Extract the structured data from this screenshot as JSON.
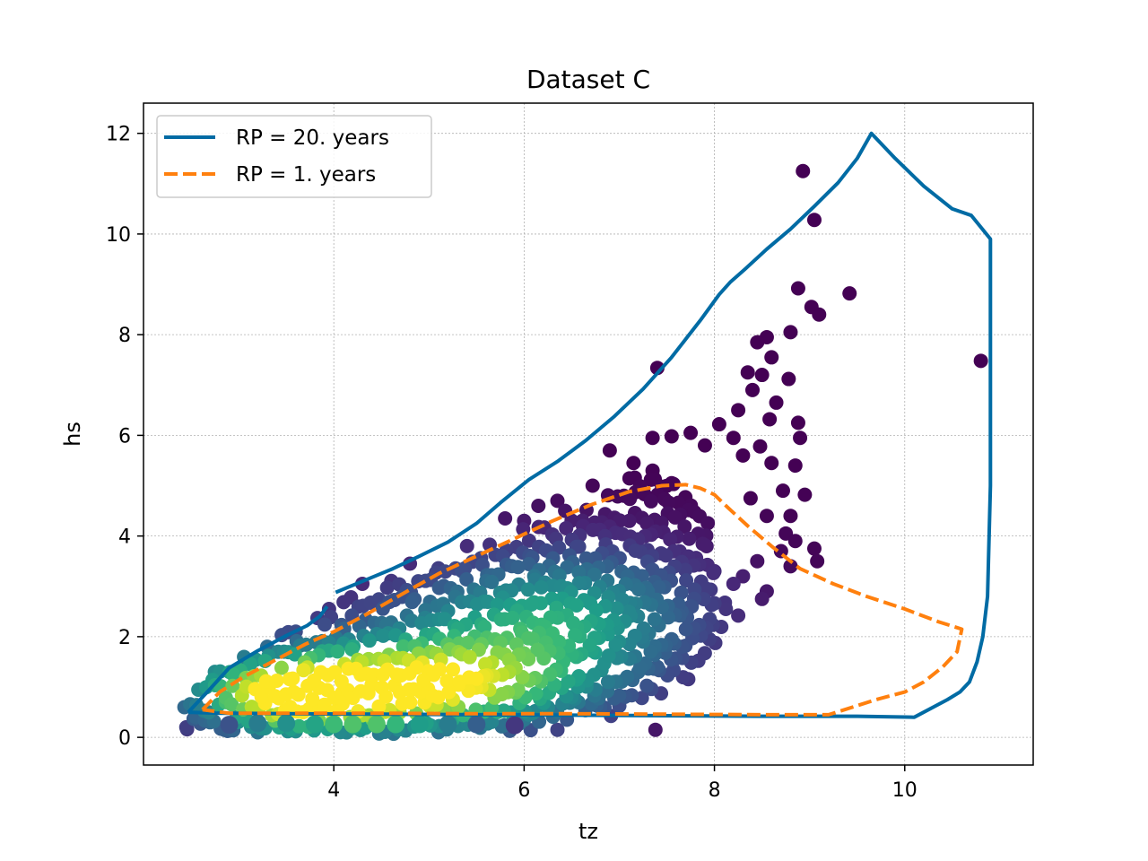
{
  "chart_data": {
    "type": "scatter",
    "title": "Dataset C",
    "xlabel": "tz",
    "ylabel": "hs",
    "xlim": [
      2.0,
      11.35
    ],
    "ylim": [
      -0.55,
      12.6
    ],
    "xticks": [
      4,
      6,
      8,
      10
    ],
    "yticks": [
      0,
      2,
      4,
      6,
      8,
      10,
      12
    ],
    "grid": true,
    "legend_position": "top-left",
    "colormap": "viridis",
    "series": [
      {
        "name": "RP = 20. years",
        "style": "solid",
        "color": "#006ba4",
        "segments": [
          {
            "x": [
              2.47,
              2.68,
              2.9,
              3.2,
              3.5,
              3.72,
              3.85,
              3.93
            ],
            "y": [
              0.5,
              0.92,
              1.38,
              1.72,
              2.02,
              2.22,
              2.4,
              2.6
            ]
          },
          {
            "x": [
              4.02,
              4.3,
              4.62,
              4.9,
              5.2,
              5.5,
              5.75,
              6.05,
              6.35,
              6.65,
              6.95,
              7.25,
              7.55,
              7.85,
              8.05,
              8.17,
              8.32,
              8.55,
              8.8,
              9.05,
              9.3,
              9.5,
              9.65,
              9.9,
              10.2,
              10.5,
              10.7,
              10.9,
              10.9,
              10.87,
              10.82,
              10.76,
              10.68,
              10.58,
              10.45,
              10.1,
              9.5,
              8.5,
              7.5,
              6.5,
              5.5,
              4.5,
              3.5,
              2.8,
              2.47
            ],
            "y": [
              2.88,
              3.1,
              3.35,
              3.6,
              3.88,
              4.25,
              4.66,
              5.12,
              5.48,
              5.9,
              6.38,
              6.92,
              7.55,
              8.28,
              8.8,
              9.05,
              9.3,
              9.7,
              10.1,
              10.55,
              11.02,
              11.5,
              12.0,
              11.5,
              10.95,
              10.5,
              10.37,
              9.9,
              5.0,
              2.8,
              2.0,
              1.5,
              1.1,
              0.9,
              0.75,
              0.4,
              0.42,
              0.42,
              0.43,
              0.44,
              0.45,
              0.46,
              0.47,
              0.48,
              0.5
            ]
          }
        ]
      },
      {
        "name": "RP = 1. years",
        "style": "dashed",
        "color": "#ff800e",
        "segments": [
          {
            "x": [
              2.62,
              2.8,
              3.05,
              3.35,
              3.7,
              4.0,
              4.35,
              4.72,
              5.1,
              5.5,
              5.9,
              6.3,
              6.7,
              7.1,
              7.45,
              7.7,
              7.85,
              8.0,
              8.15,
              8.35,
              8.6,
              8.9,
              9.25,
              9.6,
              10.0,
              10.35,
              10.6,
              10.55,
              10.4,
              10.2,
              10.0,
              9.7,
              9.45,
              9.2,
              8.5,
              7.5,
              6.5,
              5.5,
              4.5,
              3.5,
              2.9,
              2.62
            ],
            "y": [
              0.55,
              0.9,
              1.2,
              1.5,
              1.85,
              2.1,
              2.45,
              2.85,
              3.25,
              3.6,
              3.95,
              4.3,
              4.62,
              4.88,
              5.0,
              5.02,
              4.95,
              4.82,
              4.55,
              4.2,
              3.8,
              3.35,
              3.05,
              2.8,
              2.55,
              2.3,
              2.15,
              1.7,
              1.4,
              1.1,
              0.9,
              0.75,
              0.6,
              0.45,
              0.45,
              0.46,
              0.47,
              0.47,
              0.48,
              0.48,
              0.48,
              0.55
            ]
          }
        ]
      }
    ],
    "density_blobs": [
      {
        "x": 4.4,
        "y": 0.95,
        "sx": 1.3,
        "sy": 0.6,
        "w": 1.0
      },
      {
        "x": 5.8,
        "y": 1.9,
        "sx": 1.25,
        "sy": 0.9,
        "w": 0.45
      },
      {
        "x": 6.6,
        "y": 2.8,
        "sx": 1.0,
        "sy": 0.9,
        "w": 0.3
      },
      {
        "x": 3.5,
        "y": 0.75,
        "sx": 0.55,
        "sy": 0.45,
        "w": 0.45
      }
    ],
    "band_points": [
      {
        "x": 3.2,
        "y": 0.28,
        "v": 0.42
      },
      {
        "x": 3.5,
        "y": 0.28,
        "v": 0.5
      },
      {
        "x": 3.8,
        "y": 0.26,
        "v": 0.58
      },
      {
        "x": 4.0,
        "y": 0.26,
        "v": 0.68
      },
      {
        "x": 4.2,
        "y": 0.26,
        "v": 0.72
      },
      {
        "x": 4.45,
        "y": 0.26,
        "v": 0.72
      },
      {
        "x": 4.65,
        "y": 0.26,
        "v": 0.66
      },
      {
        "x": 4.9,
        "y": 0.26,
        "v": 0.55
      },
      {
        "x": 5.2,
        "y": 0.26,
        "v": 0.42
      },
      {
        "x": 5.5,
        "y": 0.26,
        "v": 0.3
      },
      {
        "x": 5.9,
        "y": 0.24,
        "v": 0.16
      },
      {
        "x": 2.9,
        "y": 0.25,
        "v": 0.25
      }
    ],
    "outliers": [
      [
        8.93,
        11.25
      ],
      [
        9.05,
        10.28
      ],
      [
        10.8,
        7.48
      ],
      [
        8.88,
        8.92
      ],
      [
        9.42,
        8.82
      ],
      [
        9.02,
        8.55
      ],
      [
        9.1,
        8.4
      ],
      [
        7.4,
        7.34
      ],
      [
        8.55,
        7.95
      ],
      [
        8.8,
        8.05
      ],
      [
        8.45,
        7.85
      ],
      [
        8.6,
        7.55
      ],
      [
        8.35,
        7.25
      ],
      [
        8.5,
        7.2
      ],
      [
        8.78,
        7.12
      ],
      [
        8.4,
        6.9
      ],
      [
        8.65,
        6.65
      ],
      [
        8.25,
        6.5
      ],
      [
        8.58,
        6.32
      ],
      [
        8.88,
        6.25
      ],
      [
        8.05,
        6.22
      ],
      [
        7.75,
        6.05
      ],
      [
        7.55,
        5.98
      ],
      [
        7.35,
        5.95
      ],
      [
        7.9,
        5.8
      ],
      [
        8.2,
        5.95
      ],
      [
        8.48,
        5.78
      ],
      [
        8.9,
        5.95
      ],
      [
        8.3,
        5.6
      ],
      [
        8.6,
        5.45
      ],
      [
        8.85,
        5.4
      ],
      [
        8.72,
        4.9
      ],
      [
        8.95,
        4.82
      ],
      [
        8.55,
        4.4
      ],
      [
        8.8,
        4.4
      ],
      [
        8.75,
        4.05
      ],
      [
        8.85,
        3.9
      ],
      [
        8.7,
        3.7
      ],
      [
        9.05,
        3.75
      ],
      [
        9.08,
        3.5
      ],
      [
        8.8,
        3.4
      ],
      [
        8.45,
        3.5
      ],
      [
        8.3,
        3.2
      ],
      [
        8.0,
        3.3
      ],
      [
        8.2,
        3.05
      ],
      [
        8.55,
        2.9
      ],
      [
        8.5,
        2.75
      ],
      [
        8.12,
        2.55
      ],
      [
        8.25,
        2.42
      ],
      [
        7.95,
        2.35
      ],
      [
        7.75,
        2.6
      ],
      [
        7.3,
        2.9
      ],
      [
        7.1,
        2.5
      ],
      [
        6.95,
        2.25
      ],
      [
        7.7,
        2.15
      ],
      [
        7.55,
        1.95
      ],
      [
        7.25,
        1.9
      ],
      [
        7.4,
        1.4
      ],
      [
        7.2,
        1.3
      ],
      [
        6.95,
        1.1
      ],
      [
        6.75,
        0.95
      ],
      [
        6.5,
        0.8
      ],
      [
        6.8,
        0.6
      ],
      [
        6.25,
        0.6
      ],
      [
        6.05,
        0.45
      ],
      [
        6.45,
        0.35
      ],
      [
        7.38,
        0.15
      ],
      [
        6.35,
        0.15
      ],
      [
        5.85,
        0.13
      ],
      [
        5.1,
        0.1
      ],
      [
        2.45,
        0.2
      ],
      [
        2.43,
        0.6
      ],
      [
        2.55,
        0.4
      ],
      [
        2.7,
        0.3
      ],
      [
        2.85,
        0.15
      ],
      [
        3.2,
        0.1
      ],
      [
        3.6,
        0.12
      ],
      [
        2.75,
        1.3
      ],
      [
        3.3,
        1.8
      ],
      [
        3.6,
        2.1
      ],
      [
        3.95,
        2.55
      ],
      [
        4.3,
        3.05
      ],
      [
        4.8,
        3.45
      ],
      [
        5.4,
        3.8
      ],
      [
        6.0,
        4.3
      ],
      [
        6.35,
        4.7
      ],
      [
        6.72,
        5.0
      ],
      [
        6.9,
        5.7
      ],
      [
        7.15,
        5.45
      ],
      [
        7.35,
        5.3
      ],
      [
        5.8,
        4.35
      ],
      [
        6.15,
        4.6
      ],
      [
        7.55,
        5.05
      ],
      [
        8.38,
        4.75
      ]
    ],
    "interior_rows": [
      {
        "y": 0.22,
        "x0": 2.45,
        "x1": 6.2
      },
      {
        "y": 0.55,
        "x0": 2.5,
        "x1": 7.0
      },
      {
        "y": 0.9,
        "x0": 2.6,
        "x1": 7.45
      },
      {
        "y": 1.25,
        "x0": 2.75,
        "x1": 7.75
      },
      {
        "y": 1.6,
        "x0": 3.05,
        "x1": 7.95
      },
      {
        "y": 1.95,
        "x0": 3.45,
        "x1": 8.05
      },
      {
        "y": 2.3,
        "x0": 3.85,
        "x1": 8.1
      },
      {
        "y": 2.65,
        "x0": 4.1,
        "x1": 8.1
      },
      {
        "y": 3.0,
        "x0": 4.55,
        "x1": 8.05
      },
      {
        "y": 3.35,
        "x0": 5.05,
        "x1": 8.0
      },
      {
        "y": 3.7,
        "x0": 5.55,
        "x1": 8.0
      },
      {
        "y": 4.05,
        "x0": 6.0,
        "x1": 7.95
      },
      {
        "y": 4.4,
        "x0": 6.45,
        "x1": 7.95
      },
      {
        "y": 4.75,
        "x0": 6.9,
        "x1": 7.75
      },
      {
        "y": 5.05,
        "x0": 7.1,
        "x1": 7.6
      }
    ]
  }
}
